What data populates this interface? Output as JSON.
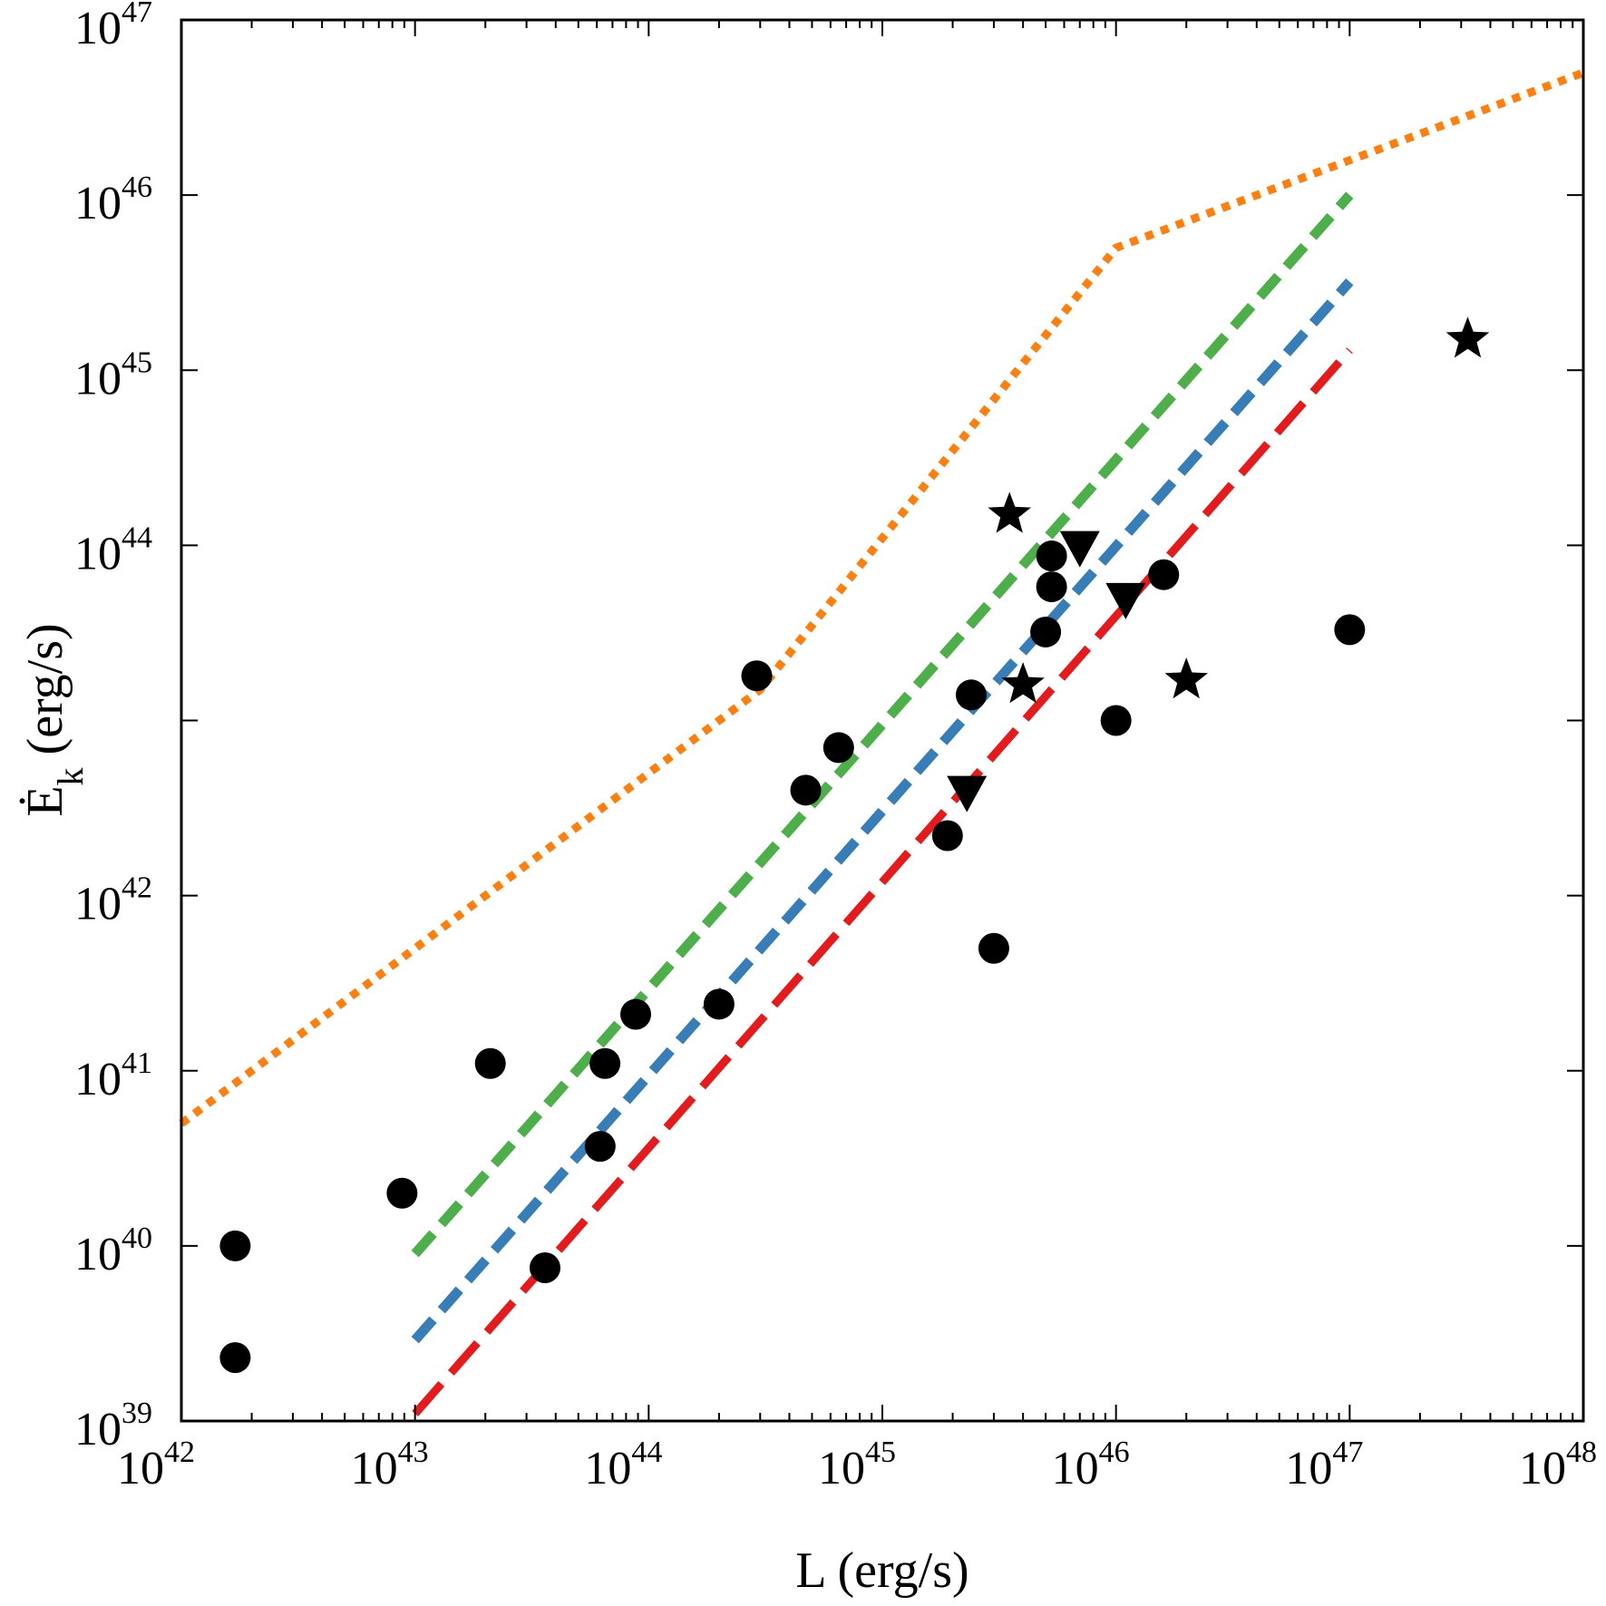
{
  "chart_data": {
    "type": "scatter",
    "xscale": "log",
    "yscale": "log",
    "xlim": [
      1e+42,
      1e+48
    ],
    "ylim": [
      1e+39,
      1e+47
    ],
    "xlabel": "L (erg/s)",
    "ylabel": {
      "main": "Ė",
      "sub": "k",
      "rest": " (erg/s)"
    },
    "x_ticks": [
      {
        "base": "10",
        "exp": "42"
      },
      {
        "base": "10",
        "exp": "43"
      },
      {
        "base": "10",
        "exp": "44"
      },
      {
        "base": "10",
        "exp": "45"
      },
      {
        "base": "10",
        "exp": "46"
      },
      {
        "base": "10",
        "exp": "47"
      },
      {
        "base": "10",
        "exp": "48"
      }
    ],
    "y_ticks": [
      {
        "value_exp": 39,
        "base": "10",
        "exp": "39"
      },
      {
        "value_exp": 40,
        "base": "10",
        "exp": "40"
      },
      {
        "value_exp": 41,
        "base": "10",
        "exp": "41"
      },
      {
        "value_exp": 42,
        "base": "10",
        "exp": "42"
      },
      {
        "value_exp": 44,
        "base": "10",
        "exp": "44"
      },
      {
        "value_exp": 45,
        "base": "10",
        "exp": "45"
      },
      {
        "value_exp": 46,
        "base": "10",
        "exp": "46"
      },
      {
        "value_exp": 47,
        "base": "10",
        "exp": "47"
      }
    ],
    "series": [
      {
        "name": "circles",
        "marker": "circle",
        "color": "#000000",
        "points": [
          [
            1.7e+42,
            1e+40
          ],
          [
            1.7e+42,
            2.3e+39
          ],
          [
            8.8e+42,
            2e+40
          ],
          [
            2.1e+43,
            1.1e+41
          ],
          [
            3.6e+43,
            7.5e+39
          ],
          [
            6.2e+43,
            3.7e+40
          ],
          [
            6.5e+43,
            1.1e+41
          ],
          [
            8.8e+43,
            2.1e+41
          ],
          [
            2e+44,
            2.4e+41
          ],
          [
            2.9e+44,
            1.8e+43
          ],
          [
            4.7e+44,
            4e+42
          ],
          [
            6.5e+44,
            7e+42
          ],
          [
            1.9e+45,
            2.2e+42
          ],
          [
            2.4e+45,
            1.4e+43
          ],
          [
            3e+45,
            5e+41
          ],
          [
            5e+45,
            3.2e+43
          ],
          [
            5.3e+45,
            8.7e+43
          ],
          [
            5.3e+45,
            5.8e+43
          ],
          [
            1e+46,
            1e+43
          ],
          [
            1.6e+46,
            6.8e+43
          ],
          [
            1e+47,
            3.3e+43
          ]
        ]
      },
      {
        "name": "stars",
        "marker": "star",
        "color": "#000000",
        "points": [
          [
            3.5e+45,
            1.5e+44
          ],
          [
            4e+45,
            1.6e+43
          ],
          [
            2e+46,
            1.7e+43
          ],
          [
            3.2e+47,
            1.5e+45
          ]
        ]
      },
      {
        "name": "triangles",
        "marker": "triangle-down",
        "color": "#000000",
        "points": [
          [
            2.3e+45,
            3.8e+42
          ],
          [
            7e+45,
            9.5e+43
          ],
          [
            1.1e+46,
            4.8e+43
          ]
        ]
      }
    ],
    "lines": [
      {
        "name": "orange-dotted",
        "color": "#ff7f0e",
        "style": "dotted",
        "points": [
          [
            1e+42,
            5e+40
          ],
          [
            1e+43,
            5e+41
          ],
          [
            3e+44,
            1.5e+43
          ],
          [
            1e+46,
            5e+45
          ],
          [
            1e+48,
            5e+46
          ]
        ]
      },
      {
        "name": "green-dashed",
        "color": "#4daf4a",
        "style": "dashed",
        "points": [
          [
            1e+43,
            9e+39
          ],
          [
            1e+47,
            1e+46
          ]
        ]
      },
      {
        "name": "blue-dashed",
        "color": "#377eb8",
        "style": "dashed",
        "points": [
          [
            1e+43,
            2.9e+39
          ],
          [
            1e+47,
            3.2e+45
          ]
        ]
      },
      {
        "name": "red-dashed",
        "color": "#e41a1c",
        "style": "longdashed",
        "points": [
          [
            1e+43,
            1.1e+39
          ],
          [
            1e+47,
            1.3e+45
          ]
        ]
      }
    ]
  }
}
